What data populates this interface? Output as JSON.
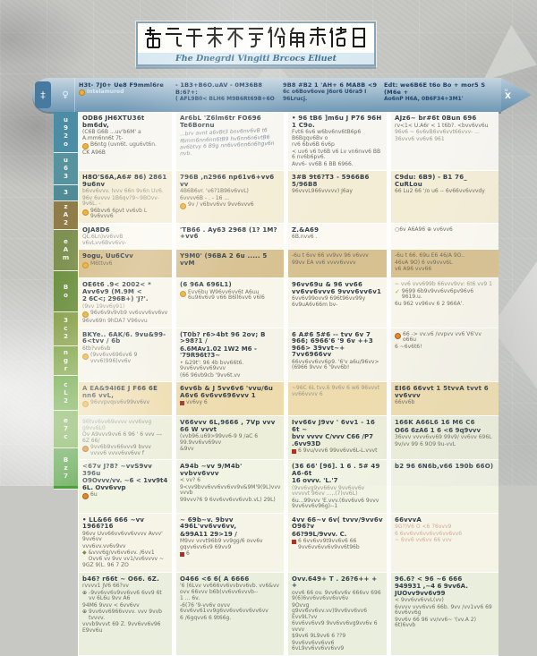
{
  "title": {
    "glyphs": "插乞干禾不亐份甪赤佬日",
    "subtitle": "Fhe Dnegrdi Vingiti Brcocs Eliuet"
  },
  "header": {
    "tab_glyph": "‡",
    "side_glyph": "♀",
    "arrow_glyph_top": "u",
    "arrow_glyph": "X",
    "columns": [
      {
        "line1": "H3t- 7J0+ Ue8   F9mml6re",
        "line2": "Intelamured",
        "bullet": true,
        "lite": true
      },
      {
        "line1": "- 1B3+B6O.uAV - 0M36B8 B:6?+:",
        "line2": "( AFL9B0< BLH6 M9B6Rt69B+6O",
        "bullet": false,
        "lite": false
      },
      {
        "line1": "9B8 #B2  1 'AH+ 6 MA8B <9",
        "line2": "6c o6Bov6ove J6or6 U6ra9 I 96Lrucj.",
        "bullet": false,
        "lite": false
      },
      {
        "line1": "Edt: we6B6E t6o Bo + mor5 S (M6e +",
        "line2": "Ao6nP H6A, 0B6F34+3M1'",
        "bullet": false,
        "lite": false
      }
    ]
  },
  "sidebar": {
    "segments": [
      {
        "chars": "u92o",
        "color": "#4a8da4"
      },
      {
        "chars": "u63",
        "color": "#57929f"
      },
      {
        "chars": "3",
        "color": "#4f8c98"
      },
      {
        "chars": "zA2",
        "color": "#8f7c49"
      },
      {
        "chars": "eAm",
        "color": "#7e9150"
      },
      {
        "chars": "Bo",
        "color": "#6d9141"
      },
      {
        "chars": "3c2",
        "color": "#89a24b"
      },
      {
        "chars": "ngr",
        "color": "#7ba23f"
      },
      {
        "chars": "cL2",
        "color": "#63a338"
      },
      {
        "chars": "e7c",
        "color": "#74aa48"
      },
      {
        "chars": "Bz7",
        "color": "#4f9e3c"
      }
    ]
  },
  "stamp": {
    "note": "faded red overprint bottom-right"
  },
  "colors": {
    "header_blue": "#6e97b4",
    "accent_orange": "#de8a2a",
    "accent_yellow": "#ecb23c",
    "accent_red": "#a93226",
    "accent_green": "#7cb140"
  },
  "table": {
    "rows": [
      {
        "h": 46,
        "bg": "#f7f6f0",
        "cells": [
          [
            {
              "k": "b",
              "t": "ODB6 JH6XTU36t bm6dv,"
            },
            {
              "k": "s",
              "t": "(C6B G6B ...uv'b6M' a A.mm6nn6t 7t-"
            },
            {
              "k": "y",
              "t": "B6ntg (uvn6t. ugu6vt6n."
            },
            {
              "k": "s",
              "t": "CK A96B"
            }
          ],
          [
            {
              "k": "b",
              "t": "Ar6bL 'Z6lm6tr FO696 Te6Bornu"
            },
            {
              "k": "hand",
              "t": "...brv avnt a6vBt3 bnv6nv6vB t6"
            },
            {
              "k": "hand",
              "t": "f6mm6nn6nn6tB9 hv6nn6n6vtB6"
            },
            {
              "k": "hand",
              "t": "av6btvy 6 B9g nn6vv6nn6n6hgv6n nvb."
            }
          ],
          [
            {
              "k": "b",
              "t": "• 96 tB6 ]m6u J P76 96H 1 C9o."
            },
            {
              "k": "s",
              "t": "Fvt6 6v6 w6bv6nv6tB6p6 B6Bgqv6Bv o"
            },
            {
              "k": "s",
              "t": "rv6 6bv6B 6v6p"
            },
            {
              "k": "s",
              "t": "< uv6 v6 tv6B v6 Lv vn6nvv6 BB 6 nv6b6pv6."
            },
            {
              "k": "s",
              "t": "Avv6- vv6B 6 BB 6966."
            }
          ],
          [
            {
              "k": "b",
              "t": "AJz6~ br#6t  0Bun  696"
            },
            {
              "k": "s",
              "t": "rv<1< U.A6r < 1 t6b?.  <bvv6vv6u"
            },
            {
              "k": "f",
              "t": "96v6 ~ 6v6vB6vv6vvt66vvv- ..."
            },
            {
              "k": "f",
              "t": "36vvv6 vv6v6 961"
            }
          ]
        ]
      },
      {
        "h": 36,
        "bg": "#f4edd6",
        "cells": [
          [
            {
              "k": "b",
              "t": "H8O'S6A,A6# 86) 2861 9u6nv"
            },
            {
              "k": "f",
              "t": "b6vv6vvv. lvvv 66n 9v6n Uv6."
            },
            {
              "k": "f",
              "t": "96v 6vvvv 1B6qv?9~9BOvv- 9v6L. -"
            },
            {
              "k": "y",
              "t": "96bvv6 6pvt vv6vb L 9v6vvv6"
            }
          ],
          [
            {
              "k": "b",
              "t": "796B ,n2966 np61v6+vv6  vv"
            },
            {
              "k": "s",
              "t": "4B6B6vr. 'v6?1B96v6vvL)"
            },
            {
              "k": "s",
              "t": "6vvvv6B - . - 16 ..."
            },
            {
              "k": "y",
              "t": "9v / v6bvv6vv 9vv6vvv6"
            }
          ],
          [
            {
              "k": "b",
              "t": "3#B 9t6?T3 - 5966B6 5/96B8"
            },
            {
              "k": "s",
              "t": "96vvvL966vvvvv) J6ay"
            }
          ],
          [
            {
              "k": "b",
              "t": "C9du: 6B9)  - B1 76_  CuRLou"
            },
            {
              "k": "s",
              "t": "66 Lu2 66 '/o u6 -- 6v66vv6vvvdy"
            }
          ]
        ]
      },
      {
        "h": 18,
        "bg": "#fbf9f1",
        "cells": [
          [
            {
              "k": "b",
              "t": "OJA8D6"
            },
            {
              "k": "f",
              "t": "QL.6Ln)vv6vvB v6vLvv6Bvv6vv-"
            }
          ],
          [
            {
              "k": "b",
              "t": "'TB66 . Ay63 2968 (1? 1M? +vv6"
            }
          ],
          [
            {
              "k": "b",
              "t": "Z.&A69"
            },
            {
              "k": "s",
              "t": "6B.nvv6 ."
            }
          ],
          [
            {
              "k": "s",
              "t": "○6v  A6A96   ⊕ vv6vv6"
            }
          ]
        ]
      },
      {
        "h": 32,
        "bg": "#d8c190",
        "cells": [
          [
            {
              "k": "b",
              "t": "9ogu, Uu6Cvv"
            },
            {
              "k": "y",
              "t": "M6ttvv6"
            }
          ],
          [
            {
              "k": "b",
              "t": "Y9M0'  (96BA 2 6u ..... 5 vvM"
            }
          ],
          [
            {
              "k": "s",
              "t": "-6u t 6vv 66 vv9vv 96 v6vvv"
            },
            {
              "k": "s",
              "t": "99vv EA vv6 vvvv6vvvv"
            }
          ],
          [
            {
              "k": "s",
              "t": "-6u t 66. 69u E6 46/A 9O.."
            },
            {
              "k": "s",
              "t": "46vA 9O) 6 vv9vvv6L"
            },
            {
              "k": "s",
              "t": "v6 A96 vvv66"
            }
          ]
        ]
      },
      {
        "h": 46,
        "bg": "#f8f5ea",
        "cells": [
          [
            {
              "k": "b",
              "t": "OE6t6  .9< 2002<  *  Avv6v9 (M.9M <"
            },
            {
              "k": "b2",
              "t": "2 6C<;  296B+) 'J?'."
            },
            {
              "k": "f",
              "t": "(9vv 19vv6y91)"
            },
            {
              "k": "y",
              "t": "96v6v9v9vb9 vv6vvv6vv6vv"
            },
            {
              "k": "s",
              "t": "96vv69n 9hDA7 V96vvu"
            }
          ],
          [
            {
              "k": "b",
              "t": "(6 96A 696L1)"
            },
            {
              "k": "y",
              "t": "Evv6bu W96vv6vv6t A6uu 6u96v6v9 v66 B6ll6vv6 v6l6"
            }
          ],
          [
            {
              "k": "b",
              "t": "96vv69u & 96 vv66 vv6vv6vvv6  9vvv6vv6v1"
            },
            {
              "k": "s",
              "t": "6vv6v99ovv9 696t96vv99y 6v9uA6v66m bv-"
            }
          ],
          [
            {
              "k": "f",
              "t": "~ vv6 vvv699b 66vvv9vv: 6t6 vv9 1"
            },
            {
              "k": "g",
              "t": "9699 6b9v9vv6vv6pv96v6 9619.u."
            },
            {
              "k": "s",
              "t": "6u 962 vv96vv 6 2 966A'."
            }
          ]
        ]
      },
      {
        "h": 46,
        "bg": "#f5f3e7",
        "cells": [
          [
            {
              "k": "b",
              "t": "BKYe..   6AK/6.  9vu&99-6<tvv / 6b"
            },
            {
              "k": "s",
              "t": "6tb?vv6vb"
            },
            {
              "k": "y",
              "t": "(9vv6vv696vv6 9 vvv6(996)vv6v"
            }
          ],
          [
            {
              "k": "b",
              "t": "(T0b? r6>4bt 96 2ov;  B >98?1 /"
            },
            {
              "k": "b2",
              "t": "6.6MAv1.02   1W2 M6 - '79R96t?3~"
            },
            {
              "k": "s",
              "t": "•  &29t':  96 4b bvv66t6. 9vv6vv6vv69vvv"
            },
            {
              "k": "s",
              "t": "(66 96vb9cb '9vv6t.vv"
            }
          ],
          [
            {
              "k": "b",
              "t": "6  A#6   5#6 -- tvv 6v 7 966; 6966'6 '9 6v ++3 966> 39vvt~+  7vv6966vv"
            },
            {
              "k": "s",
              "t": "66vv6vv6vv6p9. '6'v a6u/96vv> (6966 9vvv  6 '9vv6b!"
            }
          ],
          [
            {
              "k": "o",
              "t": "66 -> vv.v6 /vvpvv vv6 V6'vv o66u"
            },
            {
              "k": "s",
              "t": "6 ~6v6t6!"
            }
          ]
        ]
      },
      {
        "h": 38,
        "bg": "#eedcae",
        "cells": [
          [
            {
              "k": "b",
              "t": "A EA&94I6E J F66 6E  nn6 vvL,"
            },
            {
              "k": "y",
              "t": "96vvpvqvv6v99vv6vv"
            }
          ],
          [
            {
              "k": "b",
              "t": "6vv6b & J 5vv6v6 'vvu/6u A6v6 6v6vv696vvv 1"
            },
            {
              "k": "r",
              "t": "vv6vy 6"
            }
          ],
          [
            {
              "k": "f",
              "t": "~96C 6L tvv.6 9v6v 6 w6 96vvvt vv66vvvv 6"
            }
          ],
          [
            {
              "k": "b",
              "t": "EI66 66vvt 1 5tvvA tvvt 6 vv6vvv"
            },
            {
              "k": "s",
              "t": "66vv6b"
            }
          ]
        ]
      },
      {
        "h": 33,
        "bg": "#eceeda",
        "cells": [
          [
            {
              "k": "f",
              "t": "96tvv6vv69vvvv vvv6vvg g9vv6L0"
            },
            {
              "k": "s",
              "t": "Ov A9vvv9vv6 6 96 ' 6 vvv --- 6Z 66/"
            },
            {
              "k": "o",
              "t": "9vv6b9vv66vvv9 bvvv vvvv6 vvvv6vv6vv f"
            }
          ],
          [
            {
              "k": "b",
              "t": "V66vvv 6L,9666 , 7Vp vvv 66 W vvvt"
            },
            {
              "k": "s",
              "t": "(vvb96.u69>99vv6-9 9 /aC 6 99.9vv6vv69vv"
            },
            {
              "k": "s",
              "t": "&9vv"
            }
          ],
          [
            {
              "k": "b",
              "t": "Ivv66v J9vv ' 6vv1 -  16 6t ~"
            },
            {
              "k": "b2",
              "t": "bvv vvvv C/vvv C66 /P7  .6vv93D"
            },
            {
              "k": "r",
              "t": "6 9vu/vvv6 99vv6vv6L-L.vvvt"
            }
          ],
          [
            {
              "k": "b",
              "t": "166K  A66L6 16 M6 C6"
            },
            {
              "k": "b2",
              "t": "O66 6zA6 1 6 <6  9q9vvv"
            },
            {
              "k": "s",
              "t": "36vvv vvvv6vv69 99v9/ vv6vv 696L"
            },
            {
              "k": "s",
              "t": "9v/vv 99 6 9O9 9u-vvL"
            }
          ]
        ]
      },
      {
        "h": 39,
        "bg": "#f1f3e3",
        "cells": [
          [
            {
              "k": "b",
              "t": "<67v J?8?  ~vvS9vv 396u"
            },
            {
              "k": "b2",
              "t": "O9Ovvv/vv. ~6 < 1vv9t4 6L. Ovv6vvp"
            },
            {
              "k": "o",
              "t": "6u"
            }
          ],
          [
            {
              "k": "b",
              "t": "A94b ~vv 9/M4b' vvbvv6vvv"
            },
            {
              "k": "s",
              "t": "< vv? 6"
            },
            {
              "k": "s",
              "t": "9<vv9bvv6vv6vv6vv9v&9M'9(9L)vvv vvvb"
            },
            {
              "k": "s",
              "t": "99vvv?6 9 6vv6vv6vv6vvb.vL) 29L)"
            }
          ],
          [
            {
              "k": "b",
              "t": "(36 66' [96]. 1 6 .  5# 49  A6-6t"
            },
            {
              "k": "b2",
              "t": "16 ovvv. 'L.'7"
            },
            {
              "k": "f",
              "t": "(9vv6vg9vv66vv 9vv6vv6v vvvvvt 96vv ...,.(7)vv6L)"
            },
            {
              "k": "s",
              "t": "6u...99vvv 'E.vvv.(6vv6vv6 9vvv 9vv6vv6v96g)--1"
            }
          ],
          [
            {
              "k": "b",
              "t": "b2 96 6N6b,v66 190b 66O)"
            }
          ]
        ]
      },
      {
        "h": 42,
        "bg": "#f5f4e7",
        "cells": [
          [
            {
              "k": "b",
              "t": "•  LL&66  666 ~vv  1966?16"
            },
            {
              "k": "s",
              "t": "96vv Uvv66vv6vv6vvvv Avvv' 9vv6vv"
            },
            {
              "k": "s",
              "t": "vvv6vv.vv6v9vv"
            },
            {
              "k": "d",
              "t": "&vvv6g/vv6vv6vv. /6vv1 Ovv6 vv 9vv vv1/vv6vvvv ~"
            },
            {
              "k": "s",
              "t": "9GZ 9(L. 96 7 ZO"
            }
          ],
          [
            {
              "k": "b",
              "t": "~  69b~v. 9bvv  496L'vv6vv6vv,"
            },
            {
              "k": "b2",
              "t": "&99A11  29>19  /"
            },
            {
              "k": "s",
              "t": "M9vv vvvt96b9 vv9gg/6 ovv6v gqvv6vv6v9 69vv9"
            },
            {
              "k": "r",
              "t": "6"
            }
          ],
          [
            {
              "k": "b",
              "t": "4vv 66~v 6v( tvvv/9vv6v O96?v"
            },
            {
              "k": "b2",
              "t": "66?99L/9vvv. C."
            },
            {
              "k": "r",
              "t": "6 6vv6vv9t9vv6v6 66 9vv6vv6vv6v9vv6t96b"
            }
          ],
          [
            {
              "k": "b",
              "t": "66vvvA"
            },
            {
              "k": "st",
              "t": "9G?)V6 O   <6   76vvv9"
            },
            {
              "k": "st",
              "t": "6 6vv6vv6vv6vv6vv6vv6"
            },
            {
              "k": "st",
              "t": "~ 6vv6 vv6vv 66 vvv"
            }
          ]
        ]
      },
      {
        "h": 46,
        "bg": "#e9efdc",
        "cells": [
          [
            {
              "k": "b",
              "t": "b46?  r66t  ~ O66. 6Z."
            },
            {
              "k": "s",
              "t": "rvvvv1 JV6 66?vv"
            },
            {
              "k": "p",
              "t": "-9vv6vv6v9vv6vv6 6vv9 6t vv 6L6u 9vv A6"
            },
            {
              "k": "s",
              "t": "94M6 9vvv < 6vv6vv"
            },
            {
              "k": "p",
              "t": "9vv6vv6966vvvv. vvv 9vvb tvvvv."
            },
            {
              "k": "s",
              "t": "vvvb9vvvt 69 Z.  9vv6vv6v96 E9vv6u"
            }
          ],
          [
            {
              "k": "b",
              "t": "O466  <6  6( A 6666"
            },
            {
              "k": "s",
              "t": "'6 (6Lvv vv666vv6vvbvv6vb. vv6&vv ovv 66vvv b6b(vv6vv6vvvb--"
            },
            {
              "k": "s",
              "t": "1 ...   6v."
            },
            {
              "k": "s",
              "t": "-6(76  '9-vv6v ovvv 6vv6vv61vv9g6vv6vv6vv6vv6vv"
            },
            {
              "k": "s",
              "t": "6 /6gqvv6 6 9t66g."
            }
          ],
          [
            {
              "k": "b",
              "t": "Ovv.649+ T   .  26?6++ + +"
            },
            {
              "k": "s",
              "t": "ovv6 66 ov. 9vv6vv6v 666vv 696 9(6)6vv6vv6vv6vv6v"
            },
            {
              "k": "s",
              "t": "9Ovvg g9vv6vv6vv.vv)9vv6vv6vv6  Evv9L?vv"
            },
            {
              "k": "s",
              "t": "6vv6vv6vv9 9vv6vv6vg9vv6v 6 vvvv"
            },
            {
              "k": "s",
              "t": "$9vv6 9L9vv6 6 ??9"
            },
            {
              "k": "s",
              "t": "9vv6vv6vv6vv6 6vL9vv6vv6vv6vv9"
            }
          ],
          [
            {
              "k": "b",
              "t": "96.6?  < 96  ~6 666"
            },
            {
              "k": "b2",
              "t": "949931 ,~4 6 9vv6A. JUOvv9vv6v99"
            },
            {
              "k": "s",
              "t": "<   9vv6vv6vvL(vv)"
            },
            {
              "k": "s",
              "t": "6vvvv vvv6vv6 66b. 9vv /vv1vv6 69 6vv6vv6g"
            },
            {
              "k": "s",
              "t": "9vv6v 66 96 vv/vv6~ '(vv.A 2)  6t)6vvb"
            }
          ]
        ]
      }
    ]
  }
}
